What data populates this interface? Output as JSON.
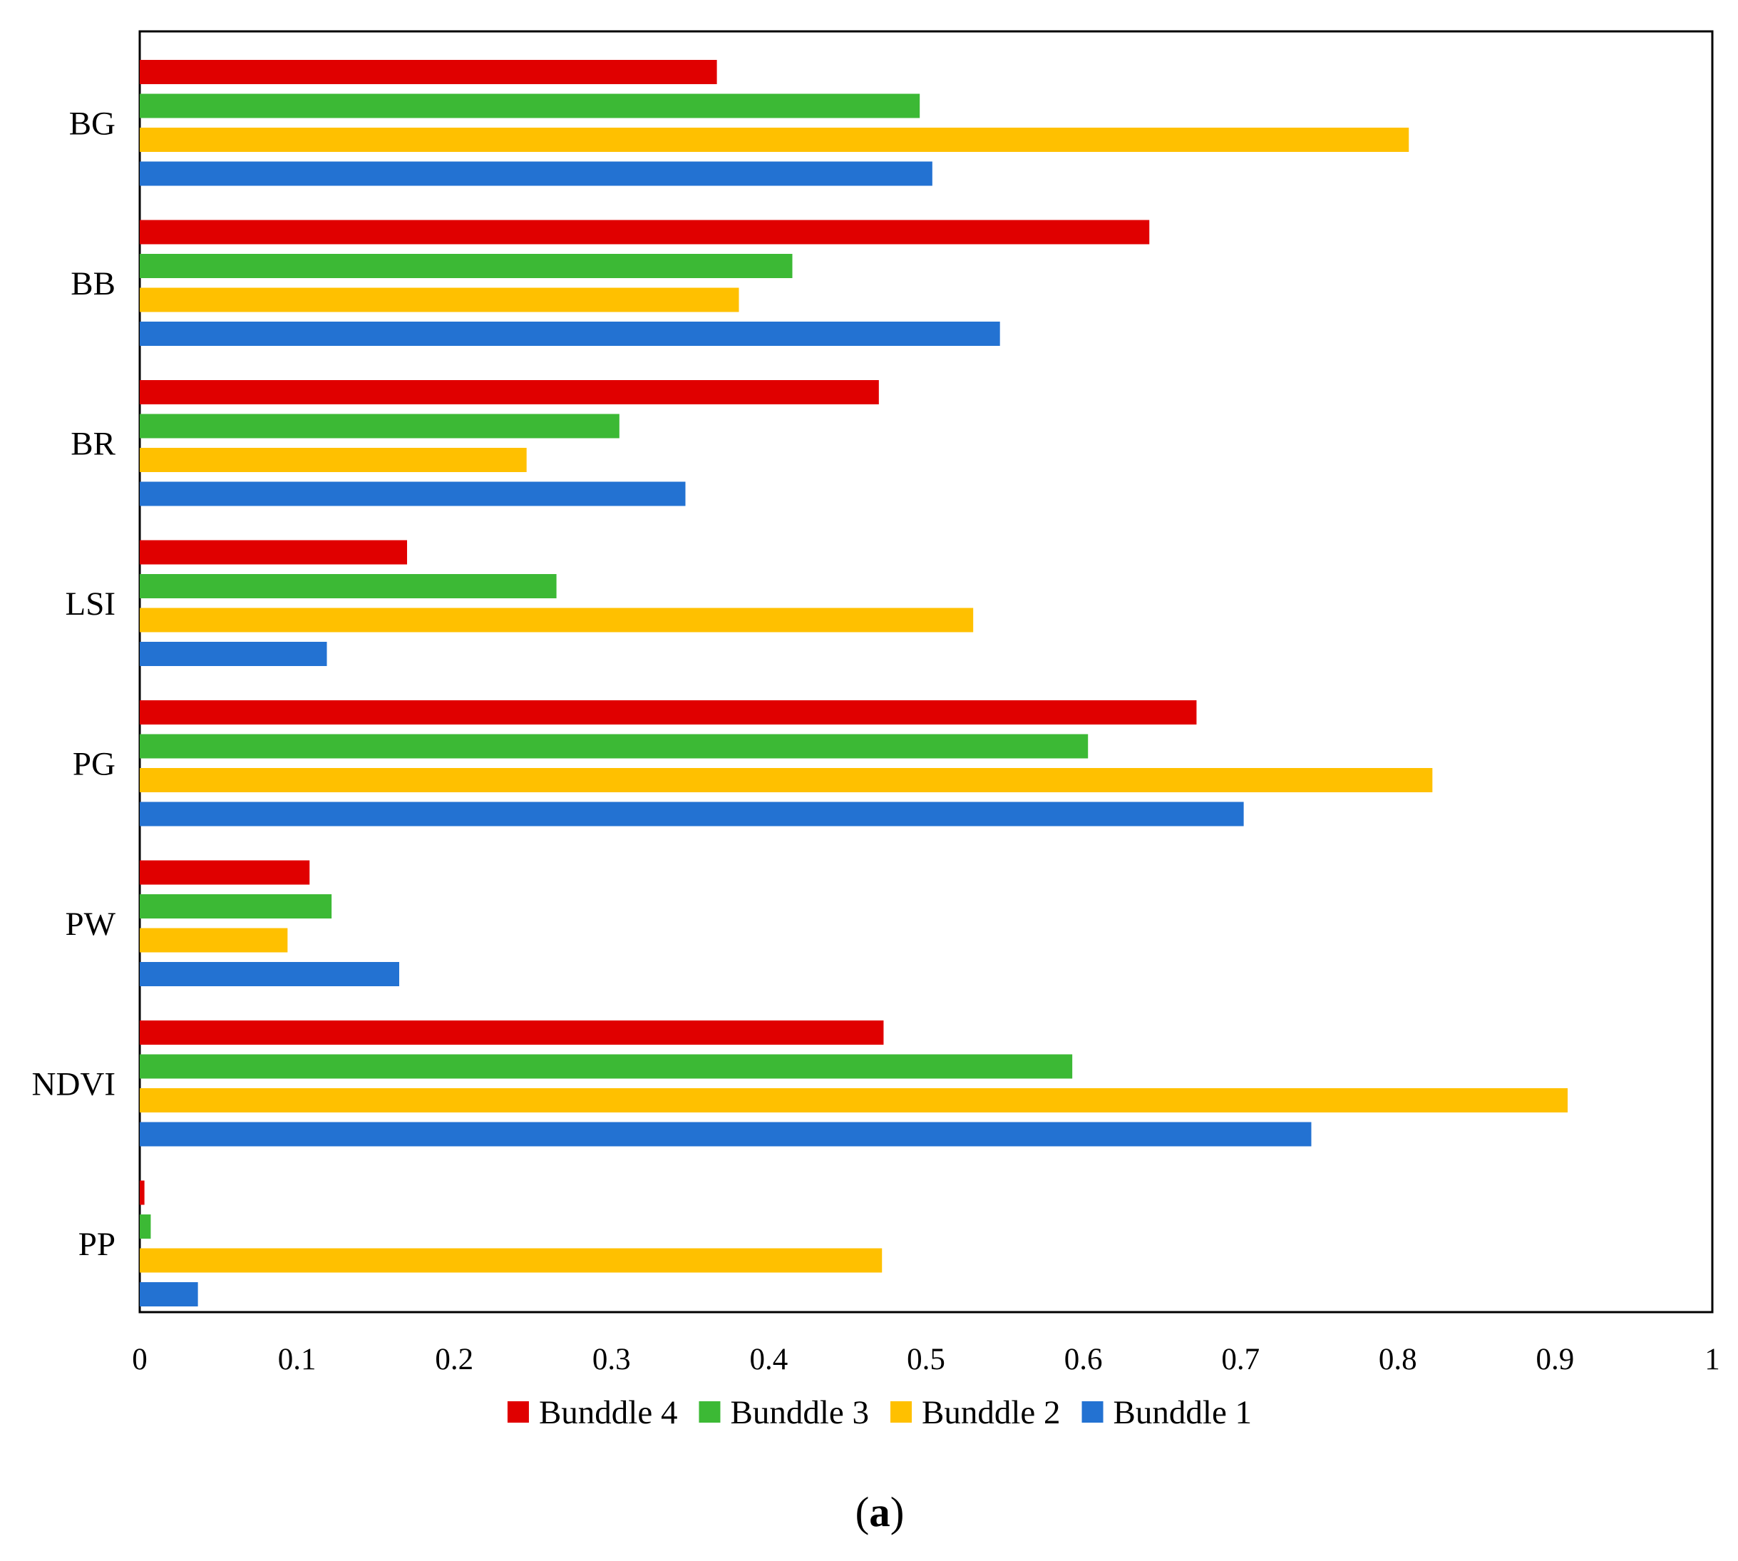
{
  "chart_data": {
    "type": "bar",
    "orientation": "horizontal",
    "title": "",
    "xlabel": "",
    "ylabel": "",
    "xlim": [
      0,
      1
    ],
    "x_ticks": [
      0,
      0.1,
      0.2,
      0.3,
      0.4,
      0.5,
      0.6,
      0.7,
      0.8,
      0.9,
      1
    ],
    "x_tick_labels": [
      "0",
      "0.1",
      "0.2",
      "0.3",
      "0.4",
      "0.5",
      "0.6",
      "0.7",
      "0.8",
      "0.9",
      "1"
    ],
    "grid": false,
    "legend_position": "bottom",
    "categories": [
      "BG",
      "BB",
      "BR",
      "LSI",
      "PG",
      "PW",
      "NDVI",
      "PP"
    ],
    "series": [
      {
        "name": "Bunddle 4",
        "color": "#e00000",
        "values": [
          0.367,
          0.642,
          0.47,
          0.17,
          0.672,
          0.108,
          0.473,
          0.003
        ]
      },
      {
        "name": "Bunddle 3",
        "color": "#3cb935",
        "values": [
          0.496,
          0.415,
          0.305,
          0.265,
          0.603,
          0.122,
          0.593,
          0.007
        ]
      },
      {
        "name": "Bunddle 2",
        "color": "#ffc000",
        "values": [
          0.807,
          0.381,
          0.246,
          0.53,
          0.822,
          0.094,
          0.908,
          0.472
        ]
      },
      {
        "name": "Bunddle 1",
        "color": "#2372d2",
        "values": [
          0.504,
          0.547,
          0.347,
          0.119,
          0.702,
          0.165,
          0.745,
          0.037
        ]
      }
    ],
    "legend_order": [
      "Bunddle 4",
      "Bunddle 3",
      "Bunddle 2",
      "Bunddle 1"
    ]
  },
  "caption": {
    "open": "(",
    "letter": "a",
    "close": ")"
  }
}
